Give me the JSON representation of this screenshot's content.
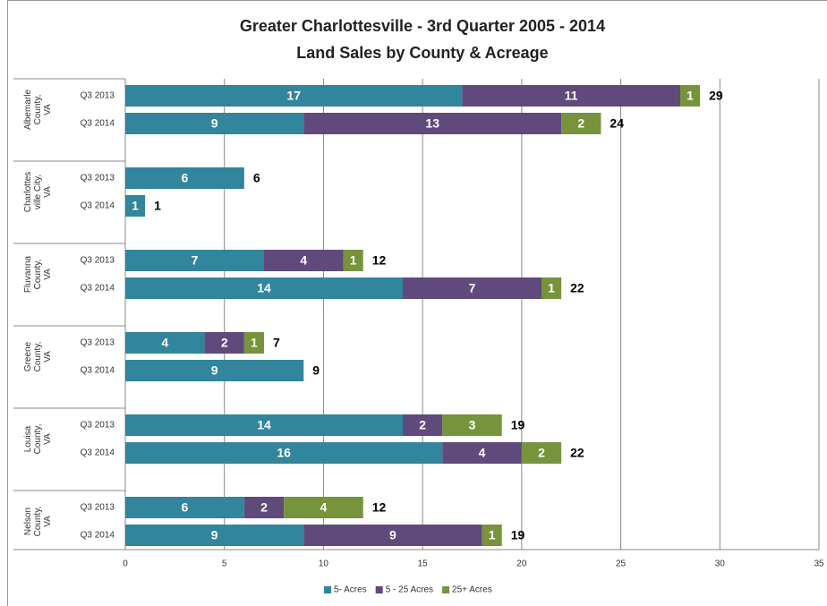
{
  "chart_data": {
    "type": "stacked-bar-horizontal",
    "title": "Greater Charlottesville - 3rd Quarter 2005 - 2014",
    "subtitle": "Land Sales by County & Acreage",
    "groups": [
      {
        "name": [
          "Albemarle",
          "County,",
          "VA"
        ],
        "categories": [
          "Q3 2013",
          "Q3 2014"
        ]
      },
      {
        "name": [
          "Charlottes",
          "ville City,",
          "VA"
        ],
        "categories": [
          "Q3 2013",
          "Q3 2014"
        ]
      },
      {
        "name": [
          "Fluvanna",
          "County,",
          "VA"
        ],
        "categories": [
          "Q3 2013",
          "Q3 2014"
        ]
      },
      {
        "name": [
          "Greene",
          "County,",
          "VA"
        ],
        "categories": [
          "Q3 2013",
          "Q3 2014"
        ]
      },
      {
        "name": [
          "Louisa",
          "County,",
          "VA"
        ],
        "categories": [
          "Q3 2013",
          "Q3 2014"
        ]
      },
      {
        "name": [
          "Nelson",
          "County,",
          "VA"
        ],
        "categories": [
          "Q3 2013",
          "Q3 2014"
        ]
      }
    ],
    "series": [
      {
        "name": "5- Acres",
        "color": "#31859c",
        "values": [
          17,
          9,
          6,
          1,
          7,
          14,
          4,
          9,
          14,
          16,
          6,
          9
        ]
      },
      {
        "name": "5 - 25 Acres",
        "color": "#604a7b",
        "values": [
          11,
          13,
          null,
          null,
          4,
          7,
          2,
          null,
          2,
          4,
          2,
          9
        ]
      },
      {
        "name": "25+ Acres",
        "color": "#77933c",
        "values": [
          1,
          2,
          null,
          null,
          1,
          1,
          1,
          null,
          3,
          2,
          4,
          1
        ]
      }
    ],
    "totals": [
      29,
      24,
      6,
      1,
      12,
      22,
      7,
      9,
      19,
      22,
      12,
      19
    ],
    "xlim": [
      0,
      35
    ],
    "xticks": [
      0,
      5,
      10,
      15,
      20,
      25,
      30,
      35
    ],
    "grid": true,
    "legend": "bottom"
  }
}
